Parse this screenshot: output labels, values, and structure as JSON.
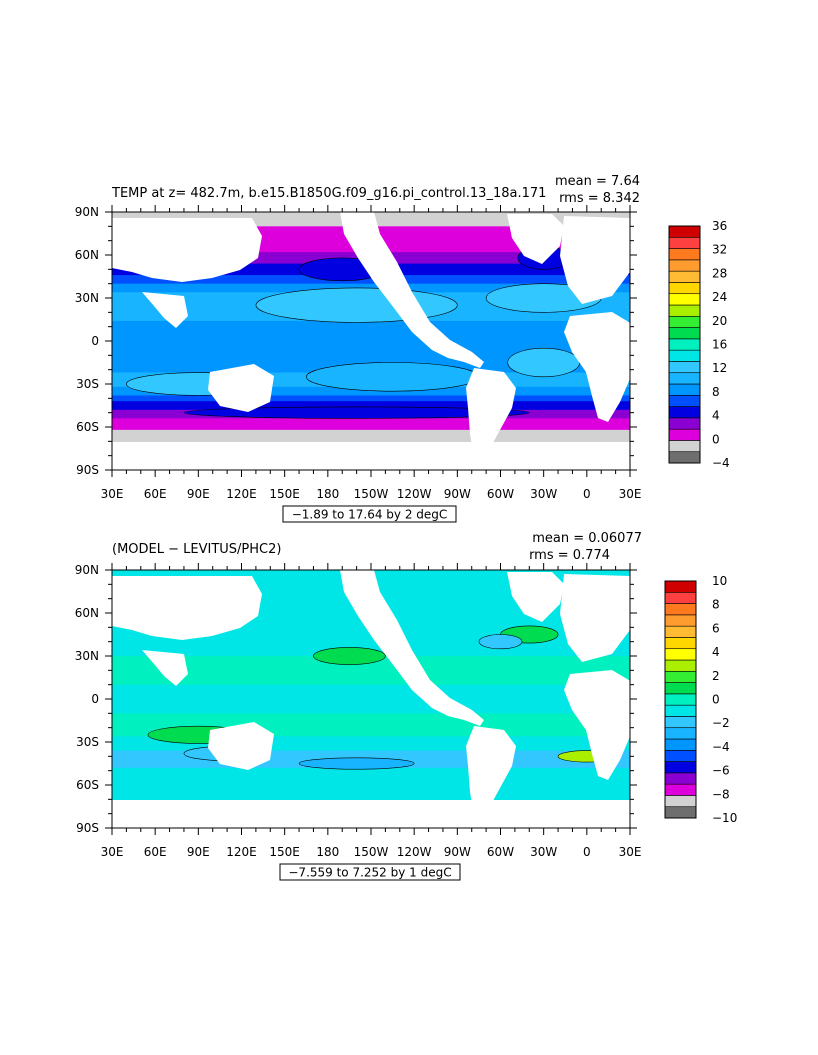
{
  "chart_data": [
    {
      "type": "heatmap",
      "title": "TEMP at z= 482.7m, b.e15.B1850G.f09_g16.pi_control.13_18a.171",
      "stats": {
        "mean": "mean = 7.64",
        "rms": "rms = 8.342"
      },
      "contour_note": "−1.89 to 17.64 by 2 degC",
      "xlabel": "",
      "ylabel": "",
      "x_ticks": [
        "30E",
        "60E",
        "90E",
        "120E",
        "150E",
        "180",
        "150W",
        "120W",
        "90W",
        "60W",
        "30W",
        "0",
        "30E"
      ],
      "y_ticks": [
        "90N",
        "60N",
        "30N",
        "0",
        "30S",
        "60S",
        "90S"
      ],
      "xlim": [
        30,
        390
      ],
      "ylim": [
        -90,
        90
      ],
      "colorbar": {
        "labels": [
          "36",
          "32",
          "28",
          "24",
          "20",
          "16",
          "12",
          "8",
          "4",
          "0",
          "−4"
        ],
        "levels": [
          -4,
          -2,
          0,
          2,
          4,
          6,
          8,
          10,
          12,
          14,
          16,
          18,
          20,
          22,
          24,
          26,
          28,
          30,
          32,
          34,
          36
        ],
        "colors": [
          "#6e6e6e",
          "#d2d2d2",
          "#dd00dd",
          "#8a00d2",
          "#0000e0",
          "#0050ff",
          "#0096ff",
          "#18b4ff",
          "#32c8ff",
          "#00e6e6",
          "#00f0c0",
          "#00dc50",
          "#33ee33",
          "#aaee00",
          "#ffff00",
          "#ffd700",
          "#ffbb33",
          "#ff9c30",
          "#ff7a1e",
          "#ff4040",
          "#d00000"
        ]
      },
      "field_levels_by_lat": [
        {
          "lat": 85,
          "value": -0.5
        },
        {
          "lat": 65,
          "value": 1.5
        },
        {
          "lat": 50,
          "value": 5
        },
        {
          "lat": 30,
          "value": 11
        },
        {
          "lat": 15,
          "value": 10
        },
        {
          "lat": 0,
          "value": 9
        },
        {
          "lat": -15,
          "value": 9.5
        },
        {
          "lat": -30,
          "value": 10.5
        },
        {
          "lat": -40,
          "value": 7
        },
        {
          "lat": -48,
          "value": 4
        },
        {
          "lat": -55,
          "value": 1.5
        },
        {
          "lat": -65,
          "value": -0.5
        },
        {
          "lat": -72,
          "value": -1
        }
      ]
    },
    {
      "type": "heatmap",
      "title": "(MODEL − LEVITUS/PHC2)",
      "stats": {
        "mean": "mean = 0.06077",
        "rms": "rms = 0.774"
      },
      "contour_note": "−7.559 to 7.252 by 1 degC",
      "xlabel": "",
      "ylabel": "",
      "x_ticks": [
        "30E",
        "60E",
        "90E",
        "120E",
        "150E",
        "180",
        "150W",
        "120W",
        "90W",
        "60W",
        "30W",
        "0",
        "30E"
      ],
      "y_ticks": [
        "90N",
        "60N",
        "30N",
        "0",
        "30S",
        "60S",
        "90S"
      ],
      "xlim": [
        30,
        390
      ],
      "ylim": [
        -90,
        90
      ],
      "colorbar": {
        "labels": [
          "10",
          "8",
          "6",
          "4",
          "2",
          "0",
          "−2",
          "−4",
          "−6",
          "−8",
          "−10"
        ],
        "levels": [
          -10,
          -9,
          -8,
          -7,
          -6,
          -5,
          -4,
          -3,
          -2,
          -1,
          0,
          1,
          2,
          3,
          4,
          5,
          6,
          7,
          8,
          9,
          10
        ],
        "colors": [
          "#6e6e6e",
          "#d2d2d2",
          "#dd00dd",
          "#8a00d2",
          "#0000e0",
          "#0050ff",
          "#0096ff",
          "#18b4ff",
          "#32c8ff",
          "#00e6e6",
          "#00f0c0",
          "#00dc50",
          "#33ee33",
          "#aaee00",
          "#ffff00",
          "#ffd700",
          "#ffbb33",
          "#ff9c30",
          "#ff7a1e",
          "#ff4040",
          "#d00000"
        ]
      },
      "field_levels_by_lat": [
        {
          "lat": 85,
          "value": -0.5
        },
        {
          "lat": 60,
          "value": -0.5
        },
        {
          "lat": 40,
          "value": -0.5
        },
        {
          "lat": 20,
          "value": 0.5
        },
        {
          "lat": 0,
          "value": -0.5
        },
        {
          "lat": -20,
          "value": 0.5
        },
        {
          "lat": -40,
          "value": -1.5
        },
        {
          "lat": -55,
          "value": -0.5
        },
        {
          "lat": -70,
          "value": -0.5
        }
      ]
    }
  ]
}
